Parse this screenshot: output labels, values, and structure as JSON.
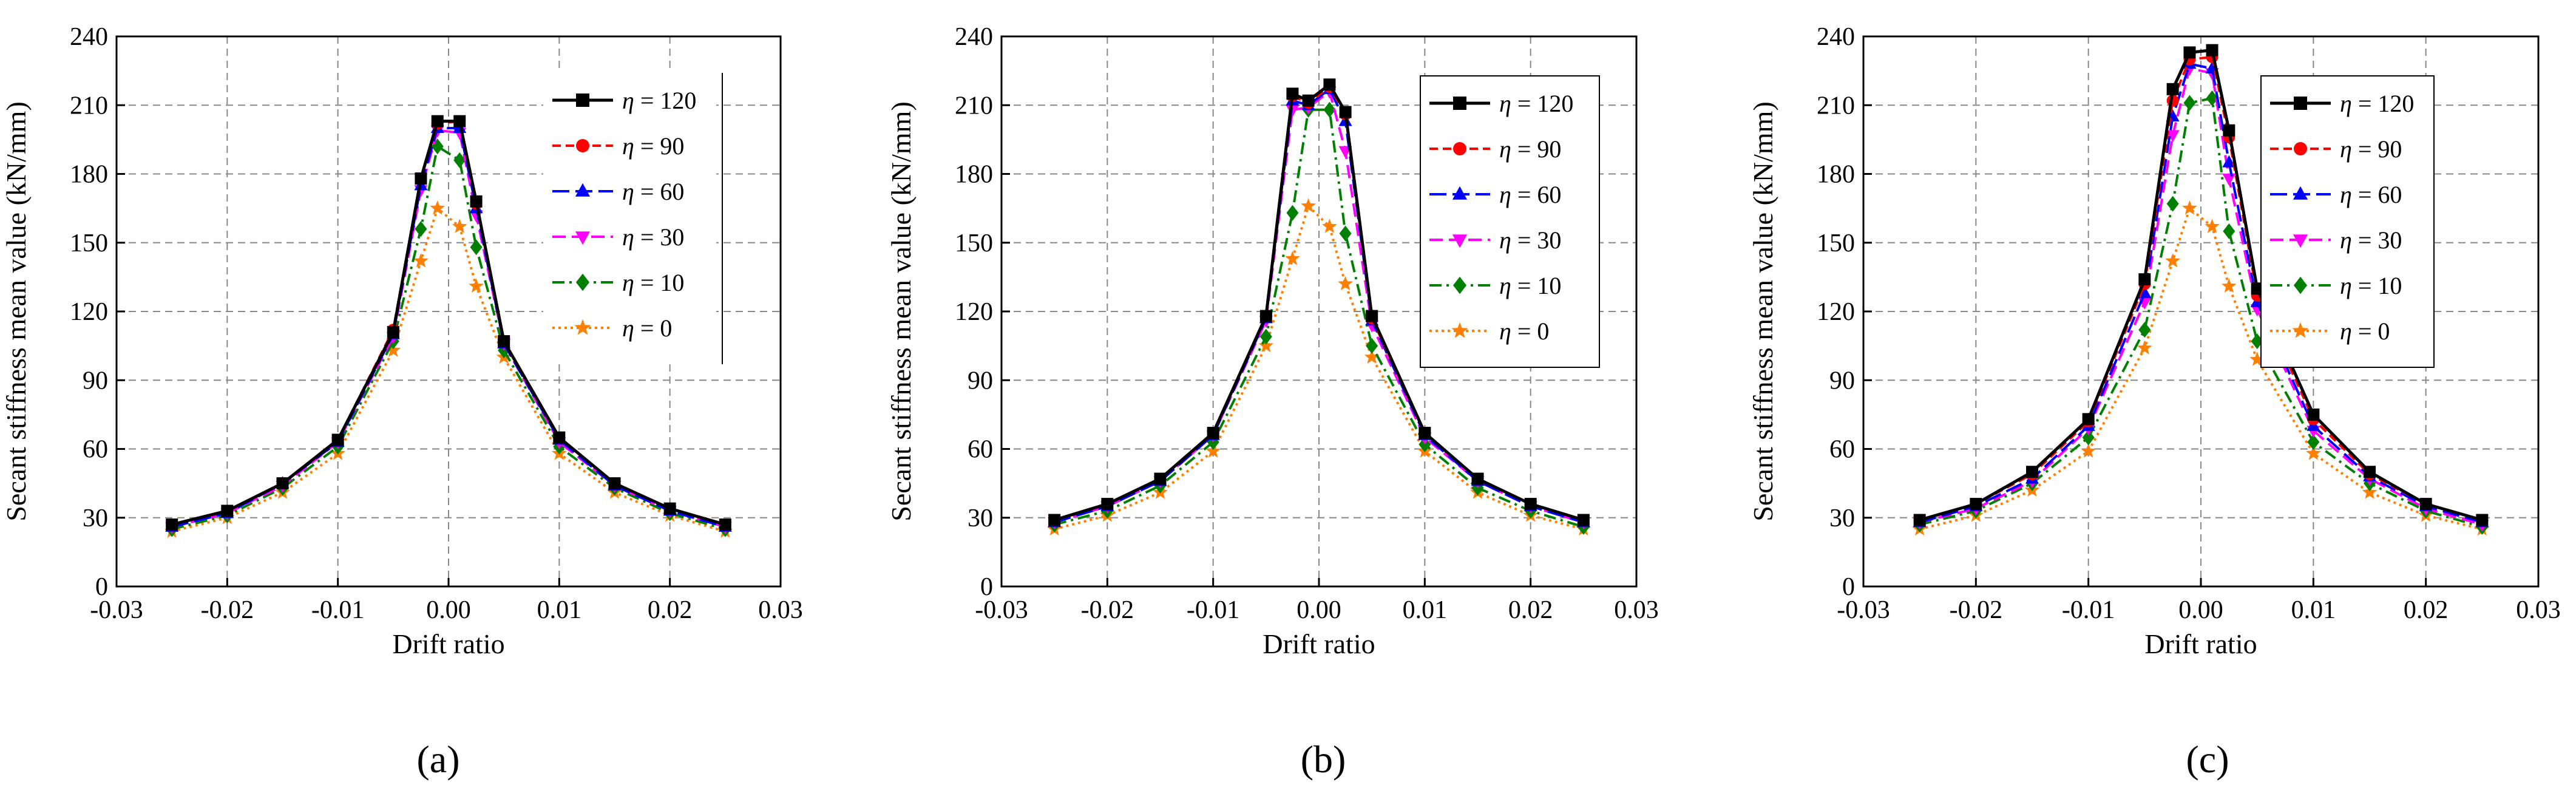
{
  "figure_labels": {
    "a": "(a)",
    "b": "(b)",
    "c": "(c)"
  },
  "colors": {
    "eta120": "#000000",
    "eta90": "#ff0000",
    "eta60": "#0000ff",
    "eta30": "#ff00ff",
    "eta10": "#008000",
    "eta0": "#ff8000",
    "grid": "#888888"
  },
  "chart_data": [
    {
      "panel": "(a)",
      "type": "line",
      "title": "",
      "xlabel": "Drift ratio",
      "ylabel": "Secant stiffness mean value (kN/mm)",
      "xlim": [
        -0.03,
        0.03
      ],
      "ylim": [
        0,
        240
      ],
      "grid": true,
      "legend_position": "top-right",
      "x_ticks": [
        "-0.03",
        "-0.02",
        "-0.01",
        "0.00",
        "0.01",
        "0.02",
        "0.03"
      ],
      "y_ticks": [
        "0",
        "30",
        "60",
        "90",
        "120",
        "150",
        "180",
        "210",
        "240"
      ],
      "x": [
        -0.025,
        -0.02,
        -0.015,
        -0.01,
        -0.005,
        -0.0025,
        -0.001,
        0.001,
        0.0025,
        0.005,
        0.01,
        0.015,
        0.02,
        0.025
      ],
      "series": [
        {
          "name": "η = 120",
          "eta": "η",
          "label_value": "= 120",
          "values": [
            27,
            33,
            45,
            64,
            111,
            178,
            203,
            203,
            168,
            107,
            65,
            45,
            34,
            27
          ]
        },
        {
          "name": "η = 90",
          "eta": "η",
          "label_value": "= 90",
          "values": [
            27,
            33,
            45,
            64,
            112,
            178,
            202,
            203,
            167,
            107,
            65,
            45,
            34,
            27
          ]
        },
        {
          "name": "η = 60",
          "eta": "η",
          "label_value": "= 60",
          "values": [
            26,
            32,
            45,
            63,
            110,
            175,
            200,
            200,
            165,
            106,
            64,
            44,
            33,
            26
          ]
        },
        {
          "name": "η = 30",
          "eta": "η",
          "label_value": "= 30",
          "values": [
            26,
            32,
            44,
            63,
            109,
            173,
            199,
            198,
            162,
            106,
            63,
            44,
            33,
            26
          ]
        },
        {
          "name": "η = 10",
          "eta": "η",
          "label_value": "= 10",
          "values": [
            25,
            31,
            43,
            61,
            107,
            156,
            192,
            186,
            148,
            103,
            61,
            43,
            32,
            25
          ]
        },
        {
          "name": "η = 0",
          "eta": "η",
          "label_value": "= 0",
          "values": [
            24,
            30,
            41,
            58,
            103,
            142,
            165,
            157,
            131,
            100,
            58,
            41,
            31,
            24
          ]
        }
      ]
    },
    {
      "panel": "(b)",
      "type": "line",
      "title": "",
      "xlabel": "Drift ratio",
      "ylabel": "Secant stiffness mean value (kN/mm)",
      "xlim": [
        -0.03,
        0.03
      ],
      "ylim": [
        0,
        240
      ],
      "grid": true,
      "legend_position": "top-right",
      "x_ticks": [
        "-0.03",
        "-0.02",
        "-0.01",
        "0.00",
        "0.01",
        "0.02",
        "0.03"
      ],
      "y_ticks": [
        "0",
        "30",
        "60",
        "90",
        "120",
        "150",
        "180",
        "210",
        "240"
      ],
      "x": [
        -0.025,
        -0.02,
        -0.015,
        -0.01,
        -0.005,
        -0.0025,
        -0.001,
        0.001,
        0.0025,
        0.005,
        0.01,
        0.015,
        0.02,
        0.025
      ],
      "series": [
        {
          "name": "η = 120",
          "eta": "η",
          "label_value": "= 120",
          "values": [
            29,
            36,
            47,
            67,
            118,
            215,
            212,
            219,
            207,
            118,
            67,
            47,
            36,
            29
          ]
        },
        {
          "name": "η = 90",
          "eta": "η",
          "label_value": "= 90",
          "values": [
            29,
            36,
            47,
            67,
            118,
            214,
            211,
            218,
            206,
            117,
            67,
            47,
            36,
            29
          ]
        },
        {
          "name": "η = 60",
          "eta": "η",
          "label_value": "= 60",
          "values": [
            28,
            35,
            46,
            66,
            117,
            212,
            210,
            217,
            203,
            116,
            66,
            46,
            35,
            28
          ]
        },
        {
          "name": "η = 30",
          "eta": "η",
          "label_value": "= 30",
          "values": [
            28,
            35,
            46,
            66,
            116,
            208,
            209,
            216,
            190,
            114,
            65,
            46,
            35,
            28
          ]
        },
        {
          "name": "η = 10",
          "eta": "η",
          "label_value": "= 10",
          "values": [
            27,
            33,
            44,
            63,
            109,
            163,
            208,
            208,
            154,
            105,
            62,
            43,
            33,
            26
          ]
        },
        {
          "name": "η = 0",
          "eta": "η",
          "label_value": "= 0",
          "values": [
            25,
            31,
            41,
            59,
            105,
            143,
            166,
            157,
            132,
            100,
            59,
            41,
            31,
            25
          ]
        }
      ]
    },
    {
      "panel": "(c)",
      "type": "line",
      "title": "",
      "xlabel": "Drift ratio",
      "ylabel": "Secant stiffness mean value (kN/mm)",
      "xlim": [
        -0.03,
        0.03
      ],
      "ylim": [
        0,
        240
      ],
      "grid": true,
      "legend_position": "top-right",
      "x_ticks": [
        "-0.03",
        "-0.02",
        "-0.01",
        "0.00",
        "0.01",
        "0.02",
        "0.03"
      ],
      "y_ticks": [
        "0",
        "30",
        "60",
        "90",
        "120",
        "150",
        "180",
        "210",
        "240"
      ],
      "x": [
        -0.025,
        -0.02,
        -0.015,
        -0.01,
        -0.005,
        -0.0025,
        -0.001,
        0.001,
        0.0025,
        0.005,
        0.01,
        0.015,
        0.02,
        0.025
      ],
      "series": [
        {
          "name": "η = 120",
          "eta": "η",
          "label_value": "= 120",
          "values": [
            29,
            36,
            50,
            73,
            134,
            217,
            233,
            234,
            199,
            130,
            75,
            50,
            36,
            29
          ]
        },
        {
          "name": "η = 90",
          "eta": "η",
          "label_value": "= 90",
          "values": [
            29,
            36,
            49,
            72,
            132,
            212,
            230,
            231,
            196,
            127,
            73,
            49,
            36,
            29
          ]
        },
        {
          "name": "η = 60",
          "eta": "η",
          "label_value": "= 60",
          "values": [
            28,
            35,
            47,
            70,
            128,
            205,
            228,
            226,
            185,
            124,
            70,
            48,
            35,
            28
          ]
        },
        {
          "name": "η = 30",
          "eta": "η",
          "label_value": "= 30",
          "values": [
            28,
            34,
            46,
            69,
            124,
            197,
            226,
            224,
            178,
            121,
            68,
            47,
            34,
            27
          ]
        },
        {
          "name": "η = 10",
          "eta": "η",
          "label_value": "= 10",
          "values": [
            27,
            33,
            45,
            65,
            112,
            167,
            211,
            213,
            155,
            107,
            63,
            45,
            33,
            26
          ]
        },
        {
          "name": "η = 0",
          "eta": "η",
          "label_value": "= 0",
          "values": [
            25,
            31,
            42,
            59,
            104,
            142,
            165,
            157,
            131,
            99,
            58,
            41,
            31,
            25
          ]
        }
      ]
    }
  ]
}
